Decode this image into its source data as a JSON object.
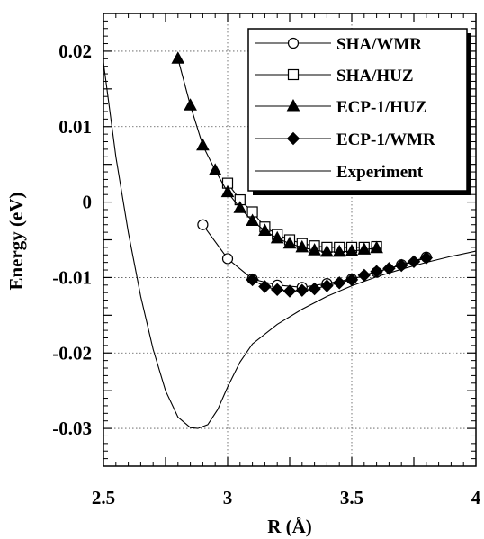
{
  "chart_data": {
    "type": "line",
    "xlabel": "R (Å)",
    "ylabel": "Energy (eV)",
    "xlim": [
      2.5,
      4
    ],
    "ylim": [
      -0.035,
      0.025
    ],
    "x_ticks": [
      2.5,
      3,
      3.5,
      4
    ],
    "x_tick_labels": [
      "2.5",
      "3",
      "3.5",
      "4"
    ],
    "y_ticks": [
      0.02,
      0.01,
      0,
      -0.01,
      -0.02,
      -0.03
    ],
    "y_tick_labels": [
      "0.02",
      "0.01",
      "0",
      "-0.01",
      "-0.02",
      "-0.03"
    ],
    "grid": true,
    "legend_position": "top-right",
    "series": [
      {
        "name": "SHA/WMR",
        "marker": "open-circle",
        "x": [
          2.9,
          3.0,
          3.1,
          3.2,
          3.3,
          3.4,
          3.5,
          3.6,
          3.7,
          3.8
        ],
        "y": [
          -0.003,
          -0.0075,
          -0.0102,
          -0.011,
          -0.0113,
          -0.0108,
          -0.0102,
          -0.0093,
          -0.0083,
          -0.0073
        ]
      },
      {
        "name": "SHA/HUZ",
        "marker": "open-square",
        "x": [
          3.0,
          3.05,
          3.1,
          3.15,
          3.2,
          3.25,
          3.3,
          3.35,
          3.4,
          3.45,
          3.5,
          3.55,
          3.6
        ],
        "y": [
          0.0025,
          0.0003,
          -0.0013,
          -0.0033,
          -0.0043,
          -0.005,
          -0.0055,
          -0.0058,
          -0.006,
          -0.006,
          -0.006,
          -0.006,
          -0.0059
        ]
      },
      {
        "name": "ECP-1/HUZ",
        "marker": "filled-triangle",
        "x": [
          2.8,
          2.85,
          2.9,
          2.95,
          3.0,
          3.05,
          3.1,
          3.15,
          3.2,
          3.25,
          3.3,
          3.35,
          3.4,
          3.45,
          3.5,
          3.55,
          3.6
        ],
        "y": [
          0.019,
          0.0128,
          0.0075,
          0.0042,
          0.0013,
          -0.0008,
          -0.0025,
          -0.0038,
          -0.0048,
          -0.0055,
          -0.006,
          -0.0064,
          -0.0066,
          -0.0066,
          -0.0065,
          -0.0063,
          -0.0061
        ]
      },
      {
        "name": "ECP-1/WMR",
        "marker": "filled-diamond",
        "x": [
          3.1,
          3.15,
          3.2,
          3.25,
          3.3,
          3.35,
          3.4,
          3.45,
          3.5,
          3.55,
          3.6,
          3.65,
          3.7,
          3.75,
          3.8
        ],
        "y": [
          -0.0103,
          -0.0112,
          -0.0116,
          -0.0118,
          -0.0117,
          -0.0115,
          -0.0111,
          -0.0107,
          -0.0103,
          -0.0097,
          -0.0092,
          -0.0088,
          -0.0084,
          -0.0079,
          -0.0074
        ]
      },
      {
        "name": "Experiment",
        "marker": "none",
        "x": [
          2.5,
          2.55,
          2.6,
          2.65,
          2.7,
          2.75,
          2.8,
          2.85,
          2.88,
          2.92,
          2.96,
          3.0,
          3.05,
          3.1,
          3.2,
          3.3,
          3.4,
          3.5,
          3.6,
          3.7,
          3.8,
          3.9,
          4.0
        ],
        "y": [
          0.0185,
          0.006,
          -0.004,
          -0.0125,
          -0.0195,
          -0.025,
          -0.0285,
          -0.0299,
          -0.03,
          -0.0295,
          -0.0275,
          -0.0245,
          -0.0212,
          -0.0188,
          -0.0162,
          -0.0142,
          -0.0125,
          -0.0111,
          -0.0099,
          -0.0089,
          -0.008,
          -0.0072,
          -0.0065
        ]
      }
    ]
  }
}
